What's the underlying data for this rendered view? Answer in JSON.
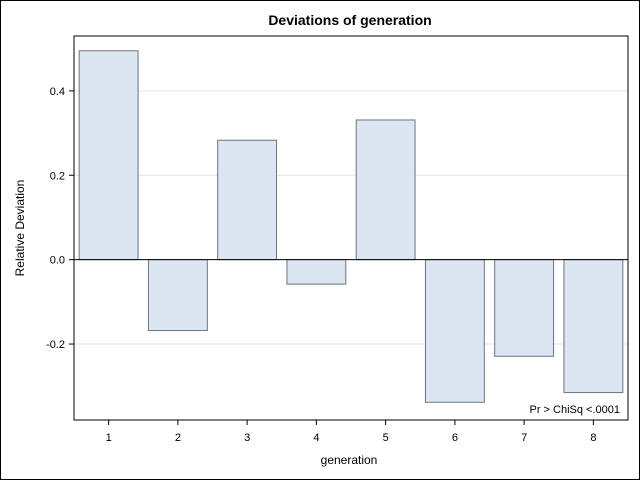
{
  "chart_data": {
    "type": "bar",
    "title": "Deviations of generation",
    "xlabel": "generation",
    "ylabel": "Relative Deviation",
    "categories": [
      "1",
      "2",
      "3",
      "4",
      "5",
      "6",
      "7",
      "8"
    ],
    "values": [
      0.495,
      -0.168,
      0.283,
      -0.058,
      0.331,
      -0.338,
      -0.229,
      -0.315
    ],
    "ylim": [
      -0.38,
      0.53
    ],
    "yticks": [
      -0.2,
      0.0,
      0.2,
      0.4
    ],
    "ytick_labels": [
      "-0.2",
      "0.0",
      "0.2",
      "0.4"
    ],
    "grid": true,
    "bar_color": "#dce6f2",
    "bar_edge_color": "#6b7482",
    "inset_text": "Pr > ChiSq   <.0001"
  }
}
